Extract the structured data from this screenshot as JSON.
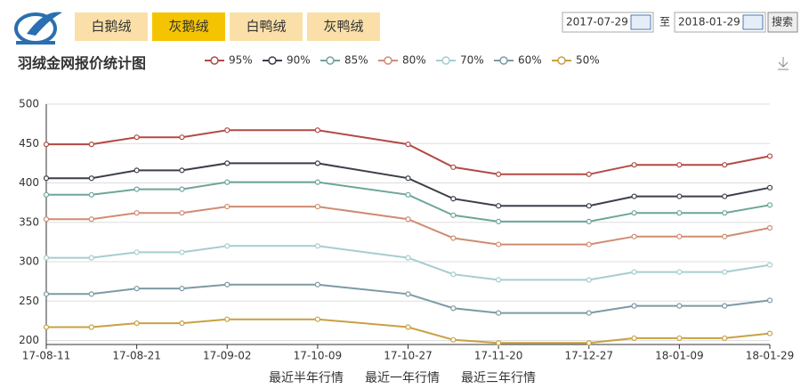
{
  "tabs": [
    "白鹅绒",
    "灰鹅绒",
    "白鸭绒",
    "灰鸭绒"
  ],
  "date_range": {
    "start": "2017-07-29",
    "separator": "至",
    "end": "2018-01-29",
    "button": "搜索"
  },
  "range_links": [
    "最近半年行情",
    "最近一年行情",
    "最近三年行情"
  ],
  "chart_data": {
    "type": "line",
    "title": "羽绒金网报价统计图",
    "categories": [
      "17-08-11",
      null,
      "17-08-21",
      null,
      "17-09-02",
      "17-10-09",
      "17-10-27",
      null,
      "17-11-20",
      "17-12-27",
      null,
      "18-01-09",
      null,
      "18-01-29"
    ],
    "series": [
      {
        "name": "95%",
        "color": "#b24a44",
        "values": [
          449,
          449,
          458,
          458,
          467,
          467,
          449,
          420,
          411,
          411,
          423,
          423,
          423,
          434
        ]
      },
      {
        "name": "90%",
        "color": "#3a3f4a",
        "values": [
          406,
          406,
          416,
          416,
          425,
          425,
          406,
          380,
          371,
          371,
          383,
          383,
          383,
          394
        ]
      },
      {
        "name": "85%",
        "color": "#6da59a",
        "values": [
          385,
          385,
          392,
          392,
          401,
          401,
          385,
          359,
          351,
          351,
          362,
          362,
          362,
          372
        ]
      },
      {
        "name": "80%",
        "color": "#d08c72",
        "values": [
          354,
          354,
          362,
          362,
          370,
          370,
          354,
          330,
          322,
          322,
          332,
          332,
          332,
          343
        ]
      },
      {
        "name": "70%",
        "color": "#a6cdd0",
        "values": [
          305,
          305,
          312,
          312,
          320,
          320,
          305,
          284,
          277,
          277,
          287,
          287,
          287,
          296
        ]
      },
      {
        "name": "60%",
        "color": "#7c9aa4",
        "values": [
          259,
          259,
          266,
          266,
          271,
          271,
          259,
          241,
          235,
          235,
          244,
          244,
          244,
          251
        ]
      },
      {
        "name": "50%",
        "color": "#c9a043",
        "values": [
          217,
          217,
          222,
          222,
          227,
          227,
          217,
          201,
          197,
          197,
          203,
          203,
          203,
          209
        ]
      }
    ],
    "ylim": [
      195,
      500
    ],
    "yticks": [
      200,
      250,
      300,
      350,
      400,
      450,
      500
    ],
    "grid": true
  }
}
